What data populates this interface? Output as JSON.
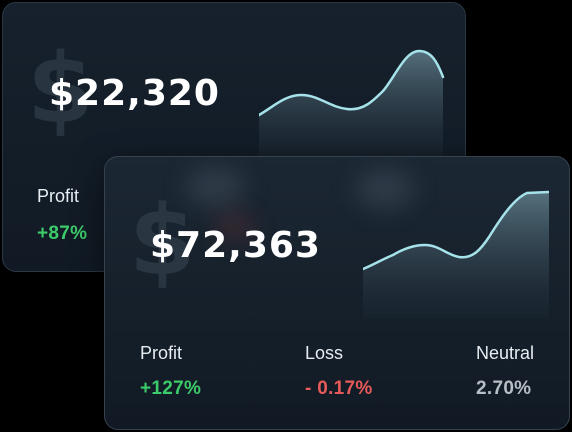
{
  "back_card": {
    "currency_icon": "dollar-icon",
    "amount": "$22,320",
    "stats": [
      {
        "label": "Profit",
        "value": "+87%",
        "color": "#3ccb6b"
      }
    ]
  },
  "front_card": {
    "currency_icon": "dollar-icon",
    "amount": "$72,363",
    "stats": [
      {
        "label": "Profit",
        "value": "+127%",
        "color": "#3ccb6b"
      },
      {
        "label": "Loss",
        "value": "- 0.17%",
        "color": "#e65a5a"
      },
      {
        "label": "Neutral",
        "value": "2.70%",
        "color": "#b7bec5"
      }
    ]
  },
  "colors": {
    "background": "#000000",
    "card": "#16212d",
    "sparkline": "#9fdde6",
    "profit": "#3ccb6b",
    "loss": "#e65a5a",
    "neutral": "#b7bec5"
  }
}
